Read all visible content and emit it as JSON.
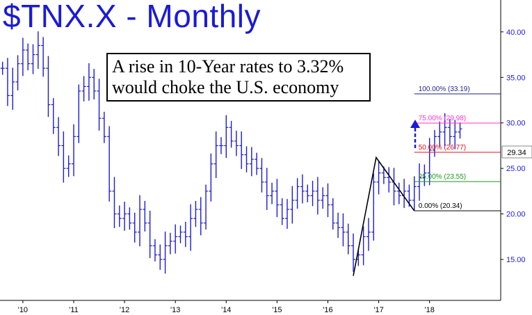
{
  "chart_data": {
    "type": "bar",
    "title": "$TNX.X - Monthly",
    "annotation": [
      "A rise in 10-Year rates to 3.32%",
      "would choke the U.S. economy"
    ],
    "last_price": "29.34",
    "y_ticks": [
      "40.00",
      "35.00",
      "30.00",
      "25.00",
      "20.00",
      "15.00"
    ],
    "x_ticks": [
      "'10",
      "'11",
      "'12",
      "'13",
      "'14",
      "'15",
      "'16",
      "'17",
      "'18"
    ],
    "ylim": [
      10.5,
      43.5
    ],
    "xlim": [
      2009.55,
      2019.4
    ],
    "fib_levels": [
      {
        "label": "100.00% (33.19)",
        "value": 33.19,
        "color": "#1f1f8a"
      },
      {
        "label": "75.00% (29.98)",
        "value": 29.98,
        "color": "#ff33cc"
      },
      {
        "label": "50.00% (26.77)",
        "value": 26.77,
        "color": "#e0101a"
      },
      {
        "label": "25.00% (23.55)",
        "value": 23.55,
        "color": "#1a9a1a"
      },
      {
        "label": "0.00% (20.34)",
        "value": 20.34,
        "color": "#000000"
      }
    ],
    "monthly_close": [
      [
        2009.6,
        36.0
      ],
      [
        2009.7,
        33.0
      ],
      [
        2009.8,
        34.5
      ],
      [
        2009.9,
        36.5
      ],
      [
        2010.0,
        38.0
      ],
      [
        2010.1,
        36.5
      ],
      [
        2010.2,
        37.5
      ],
      [
        2010.3,
        38.5
      ],
      [
        2010.4,
        36.0
      ],
      [
        2010.5,
        32.0
      ],
      [
        2010.6,
        29.5
      ],
      [
        2010.7,
        27.5
      ],
      [
        2010.8,
        25.0
      ],
      [
        2010.9,
        25.5
      ],
      [
        2011.0,
        28.5
      ],
      [
        2011.1,
        33.5
      ],
      [
        2011.2,
        34.0
      ],
      [
        2011.3,
        35.0
      ],
      [
        2011.4,
        33.5
      ],
      [
        2011.5,
        30.5
      ],
      [
        2011.6,
        28.5
      ],
      [
        2011.7,
        22.5
      ],
      [
        2011.8,
        20.0
      ],
      [
        2011.9,
        19.5
      ],
      [
        2012.0,
        20.0
      ],
      [
        2012.1,
        19.0
      ],
      [
        2012.2,
        18.0
      ],
      [
        2012.3,
        20.5
      ],
      [
        2012.4,
        19.0
      ],
      [
        2012.5,
        16.5
      ],
      [
        2012.6,
        15.5
      ],
      [
        2012.7,
        15.0
      ],
      [
        2012.8,
        16.5
      ],
      [
        2012.9,
        17.0
      ],
      [
        2013.0,
        17.5
      ],
      [
        2013.1,
        18.0
      ],
      [
        2013.2,
        17.5
      ],
      [
        2013.3,
        19.5
      ],
      [
        2013.4,
        20.5
      ],
      [
        2013.5,
        19.0
      ],
      [
        2013.6,
        22.5
      ],
      [
        2013.7,
        25.5
      ],
      [
        2013.8,
        27.5
      ],
      [
        2013.9,
        27.5
      ],
      [
        2014.0,
        29.5
      ],
      [
        2014.1,
        28.0
      ],
      [
        2014.2,
        27.5
      ],
      [
        2014.3,
        26.5
      ],
      [
        2014.4,
        25.5
      ],
      [
        2014.5,
        26.0
      ],
      [
        2014.6,
        25.0
      ],
      [
        2014.7,
        23.5
      ],
      [
        2014.8,
        22.0
      ],
      [
        2014.9,
        22.5
      ],
      [
        2015.0,
        21.0
      ],
      [
        2015.1,
        19.5
      ],
      [
        2015.2,
        20.5
      ],
      [
        2015.3,
        21.5
      ],
      [
        2015.4,
        23.0
      ],
      [
        2015.5,
        22.5
      ],
      [
        2015.6,
        22.0
      ],
      [
        2015.7,
        22.5
      ],
      [
        2015.8,
        21.5
      ],
      [
        2015.9,
        22.0
      ],
      [
        2016.0,
        21.0
      ],
      [
        2016.1,
        19.0
      ],
      [
        2016.2,
        18.5
      ],
      [
        2016.3,
        18.0
      ],
      [
        2016.4,
        16.5
      ],
      [
        2016.5,
        15.0
      ],
      [
        2016.6,
        15.5
      ],
      [
        2016.7,
        17.5
      ],
      [
        2016.8,
        18.0
      ],
      [
        2016.9,
        23.5
      ],
      [
        2017.0,
        24.5
      ],
      [
        2017.1,
        24.0
      ],
      [
        2017.2,
        23.5
      ],
      [
        2017.3,
        22.5
      ],
      [
        2017.4,
        22.0
      ],
      [
        2017.5,
        22.5
      ],
      [
        2017.6,
        21.5
      ],
      [
        2017.7,
        23.0
      ],
      [
        2017.8,
        24.0
      ],
      [
        2017.9,
        24.5
      ],
      [
        2018.0,
        27.0
      ],
      [
        2018.1,
        28.5
      ],
      [
        2018.2,
        29.0
      ],
      [
        2018.3,
        29.5
      ],
      [
        2018.4,
        28.5
      ],
      [
        2018.5,
        29.0
      ],
      [
        2018.6,
        29.34
      ]
    ]
  }
}
